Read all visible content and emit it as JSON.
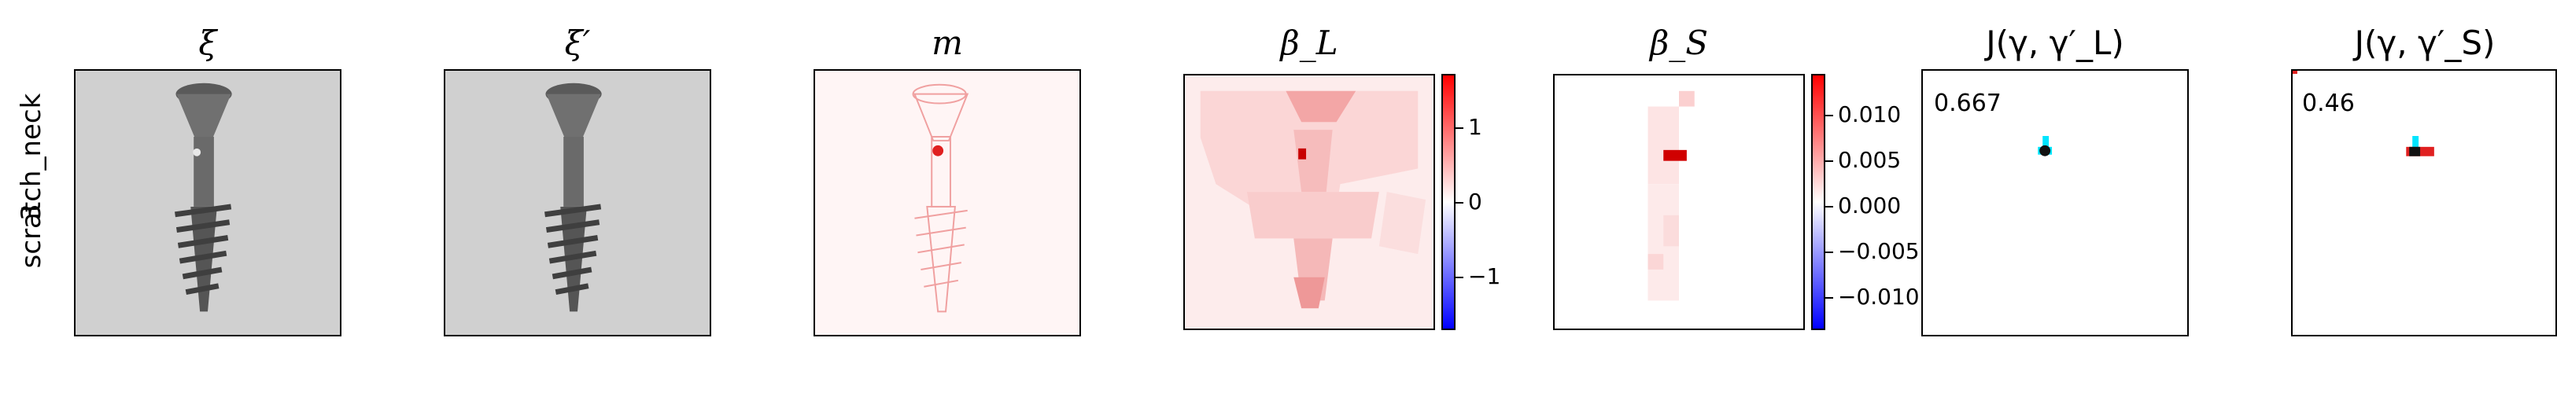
{
  "row_label": {
    "line1": "scratch_neck",
    "line2": "3"
  },
  "panels": [
    {
      "title": "ξ"
    },
    {
      "title": "ξ′"
    },
    {
      "title": "m"
    },
    {
      "title": "β_L"
    },
    {
      "title": "β_S"
    },
    {
      "title": "J(γ, γ′_L)"
    },
    {
      "title": "J(γ, γ′_S)"
    }
  ],
  "colorbar_L": {
    "ticks": [
      "1",
      "0",
      "−1"
    ],
    "colors": {
      "top": "#ff0000",
      "mid": "#ffffff",
      "bottom": "#0000ff"
    }
  },
  "colorbar_S": {
    "ticks": [
      "0.010",
      "0.005",
      "0.000",
      "−0.005",
      "−0.010"
    ],
    "colors": {
      "top": "#ff0000",
      "mid": "#ffffff",
      "bottom": "#0000ff"
    }
  },
  "scores": {
    "jl": "0.667",
    "js": "0.46"
  },
  "colors": {
    "screw_background": "#cfcfcf",
    "screw_body": "#6b6b6b",
    "heat_red": "#e02020",
    "overlay_cyan": "#00e5ff"
  }
}
